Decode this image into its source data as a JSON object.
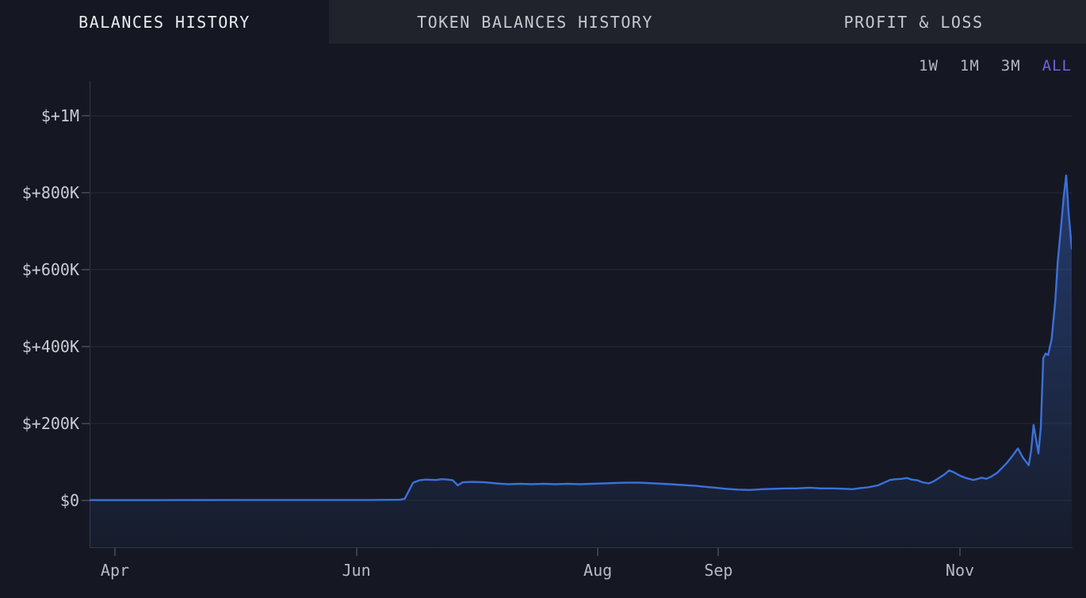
{
  "tabs": [
    {
      "label": "BALANCES HISTORY",
      "active": true
    },
    {
      "label": "TOKEN BALANCES HISTORY",
      "active": false
    },
    {
      "label": "PROFIT & LOSS",
      "active": false
    }
  ],
  "range_selector": {
    "options": [
      "1W",
      "1M",
      "3M",
      "ALL"
    ],
    "selected": "ALL",
    "selected_color": "#7163d8"
  },
  "colors": {
    "page_bg": "#151823",
    "tabbar_bg": "#20232b",
    "grid": "#262b35",
    "axis": "#333845",
    "line": "#3c70da",
    "y_label": "#c9ccd2",
    "x_label": "#b6bac2"
  },
  "chart_data": {
    "type": "area",
    "title": "",
    "xlabel": "",
    "ylabel": "",
    "x_unit": "month-of-year (4 = Apr 1, 11 = Nov 1, fractional = day within month)",
    "y_unit": "USD",
    "xlim": [
      3.79,
      11.926
    ],
    "ylim": [
      -122000,
      1091000
    ],
    "grid": "horizontal-only",
    "legend": "none",
    "line_color": "#3c70da",
    "x_ticks": [
      {
        "m": 4,
        "label": "Apr"
      },
      {
        "m": 6,
        "label": "Jun"
      },
      {
        "m": 8,
        "label": "Aug"
      },
      {
        "m": 9,
        "label": "Sep"
      },
      {
        "m": 11,
        "label": "Nov"
      }
    ],
    "y_ticks": [
      {
        "v": 0,
        "label": "$0"
      },
      {
        "v": 200000,
        "label": "$+200K"
      },
      {
        "v": 400000,
        "label": "$+400K"
      },
      {
        "v": 600000,
        "label": "$+600K"
      },
      {
        "v": 800000,
        "label": "$+800K"
      },
      {
        "v": 1000000,
        "label": "$+1M"
      }
    ],
    "series": [
      {
        "name": "balance_usd",
        "points": [
          [
            3.79,
            500
          ],
          [
            4.36,
            500
          ],
          [
            5.02,
            1000
          ],
          [
            5.67,
            1000
          ],
          [
            6.13,
            1000
          ],
          [
            6.36,
            1500
          ],
          [
            6.4,
            4000
          ],
          [
            6.44,
            28000
          ],
          [
            6.47,
            46000
          ],
          [
            6.52,
            52000
          ],
          [
            6.57,
            54000
          ],
          [
            6.66,
            53000
          ],
          [
            6.71,
            55000
          ],
          [
            6.76,
            54000
          ],
          [
            6.8,
            52000
          ],
          [
            6.84,
            39000
          ],
          [
            6.88,
            47000
          ],
          [
            6.96,
            48000
          ],
          [
            7.06,
            47000
          ],
          [
            7.16,
            44000
          ],
          [
            7.26,
            42000
          ],
          [
            7.36,
            43000
          ],
          [
            7.45,
            42000
          ],
          [
            7.55,
            43000
          ],
          [
            7.65,
            42000
          ],
          [
            7.75,
            43000
          ],
          [
            7.85,
            42000
          ],
          [
            7.95,
            43000
          ],
          [
            8.05,
            44000
          ],
          [
            8.14,
            45000
          ],
          [
            8.24,
            46000
          ],
          [
            8.34,
            46000
          ],
          [
            8.41,
            45000
          ],
          [
            8.47,
            44000
          ],
          [
            8.54,
            43000
          ],
          [
            8.6,
            42000
          ],
          [
            8.7,
            40000
          ],
          [
            8.8,
            38000
          ],
          [
            8.9,
            35000
          ],
          [
            9.0,
            32000
          ],
          [
            9.06,
            30000
          ],
          [
            9.16,
            28000
          ],
          [
            9.26,
            27000
          ],
          [
            9.36,
            29000
          ],
          [
            9.46,
            30000
          ],
          [
            9.56,
            31000
          ],
          [
            9.65,
            31000
          ],
          [
            9.75,
            33000
          ],
          [
            9.85,
            31000
          ],
          [
            9.95,
            31000
          ],
          [
            10.05,
            30000
          ],
          [
            10.11,
            29000
          ],
          [
            10.18,
            32000
          ],
          [
            10.24,
            34000
          ],
          [
            10.32,
            39000
          ],
          [
            10.37,
            46000
          ],
          [
            10.42,
            53000
          ],
          [
            10.47,
            55000
          ],
          [
            10.52,
            56000
          ],
          [
            10.56,
            58000
          ],
          [
            10.6,
            54000
          ],
          [
            10.65,
            52000
          ],
          [
            10.69,
            47000
          ],
          [
            10.74,
            44000
          ],
          [
            10.78,
            49000
          ],
          [
            10.82,
            57000
          ],
          [
            10.87,
            67000
          ],
          [
            10.91,
            78000
          ],
          [
            10.95,
            73000
          ],
          [
            11.0,
            64000
          ],
          [
            11.05,
            58000
          ],
          [
            11.11,
            53000
          ],
          [
            11.15,
            56000
          ],
          [
            11.18,
            59000
          ],
          [
            11.22,
            56000
          ],
          [
            11.26,
            62000
          ],
          [
            11.31,
            72000
          ],
          [
            11.35,
            85000
          ],
          [
            11.39,
            98000
          ],
          [
            11.44,
            118000
          ],
          [
            11.48,
            135000
          ],
          [
            11.52,
            112000
          ],
          [
            11.57,
            91000
          ],
          [
            11.59,
            130000
          ],
          [
            11.61,
            196000
          ],
          [
            11.63,
            160000
          ],
          [
            11.65,
            122000
          ],
          [
            11.67,
            190000
          ],
          [
            11.69,
            370000
          ],
          [
            11.71,
            382000
          ],
          [
            11.73,
            378000
          ],
          [
            11.76,
            420000
          ],
          [
            11.79,
            520000
          ],
          [
            11.81,
            620000
          ],
          [
            11.84,
            720000
          ],
          [
            11.86,
            790000
          ],
          [
            11.88,
            845000
          ],
          [
            11.9,
            750000
          ],
          [
            11.926,
            655000
          ]
        ]
      }
    ]
  }
}
